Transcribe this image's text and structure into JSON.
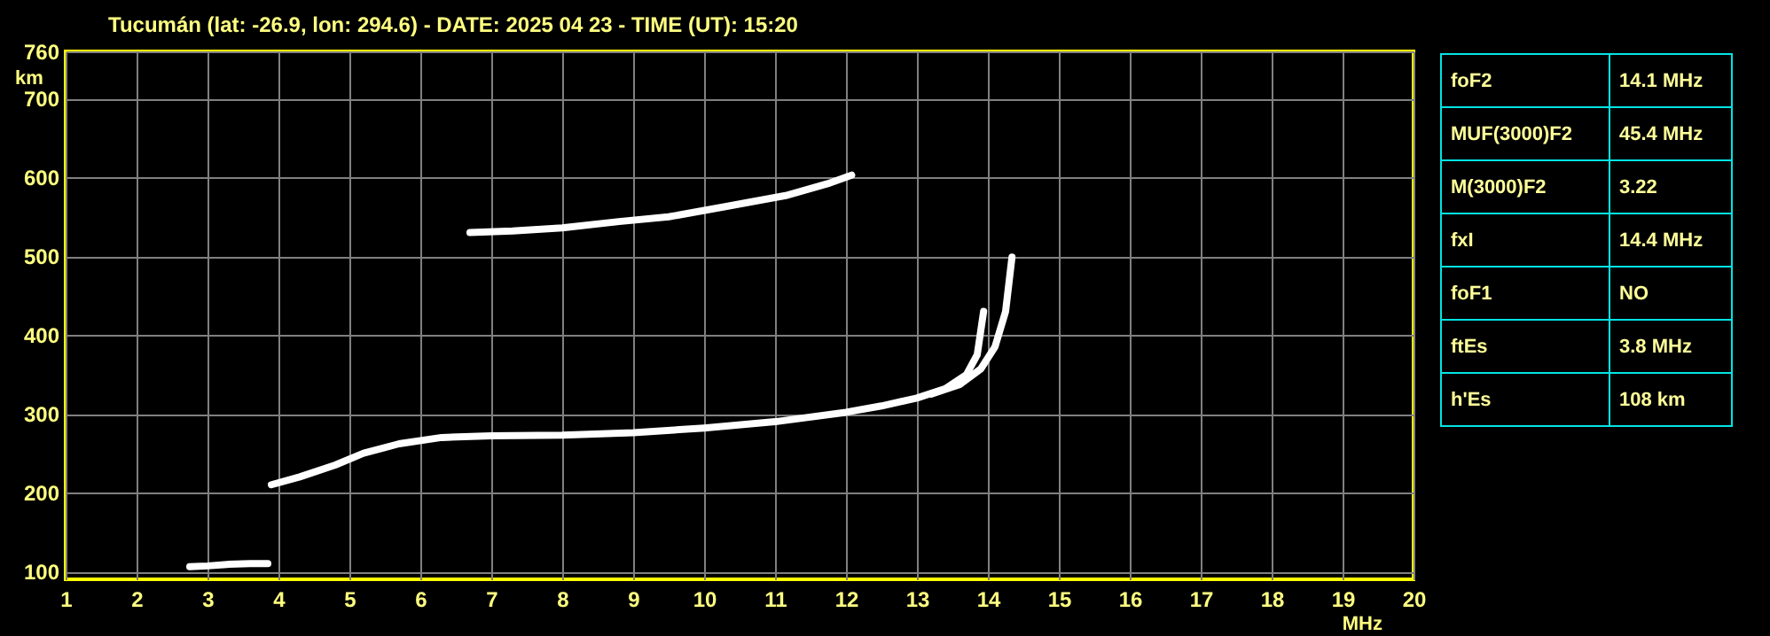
{
  "chart_data": [
    {
      "type": "line",
      "title": "Tucumán (lat: -26.9, lon: 294.6) - DATE: 2025 04 23 - TIME (UT): 15:20",
      "xlabel": "MHz",
      "ylabel": "km",
      "xlim": [
        1,
        20
      ],
      "ylim": [
        90,
        760
      ],
      "xticks": [
        1,
        2,
        3,
        4,
        5,
        6,
        7,
        8,
        9,
        10,
        11,
        12,
        13,
        14,
        15,
        16,
        17,
        18,
        19,
        20
      ],
      "yticks": [
        100,
        200,
        300,
        400,
        500,
        600,
        700,
        760
      ],
      "grid": true,
      "legend": false,
      "line_style": "solid",
      "marker": "none",
      "series": [
        {
          "color": "#ffffff",
          "x": [
            2.75,
            3.0,
            3.3,
            3.6,
            3.85
          ],
          "values": [
            106,
            107,
            109,
            110,
            110
          ]
        },
        {
          "color": "#ffffff",
          "x": [
            3.9,
            4.3,
            4.8,
            5.2,
            5.7,
            6.3,
            7.0,
            8.0,
            9.0,
            10.0,
            11.0,
            12.0,
            12.5,
            13.0,
            13.4,
            13.7,
            13.85,
            13.94
          ],
          "values": [
            210,
            220,
            235,
            250,
            262,
            270,
            272,
            273,
            276,
            282,
            290,
            302,
            310,
            320,
            332,
            350,
            375,
            430
          ]
        },
        {
          "color": "#ffffff",
          "x": [
            13.2,
            13.6,
            13.9,
            14.1,
            14.25,
            14.34
          ],
          "values": [
            325,
            337,
            357,
            385,
            430,
            499
          ]
        },
        {
          "color": "#ffffff",
          "x": [
            6.7,
            7.3,
            8.0,
            8.8,
            9.5,
            10.3,
            11.15,
            11.74,
            12.08
          ],
          "values": [
            530,
            532,
            536,
            544,
            550,
            563,
            577,
            592,
            603
          ]
        }
      ]
    },
    {
      "type": "other",
      "annotations": [
        "foF2",
        "14.1 MHz",
        "MUF(3000)F2",
        "45.4 MHz",
        "M(3000)F2",
        "3.22",
        "fxI",
        "14.4 MHz",
        "foF1",
        "NO",
        "ftEs",
        "3.8 MHz",
        "h'Es",
        "108 km"
      ]
    }
  ]
}
